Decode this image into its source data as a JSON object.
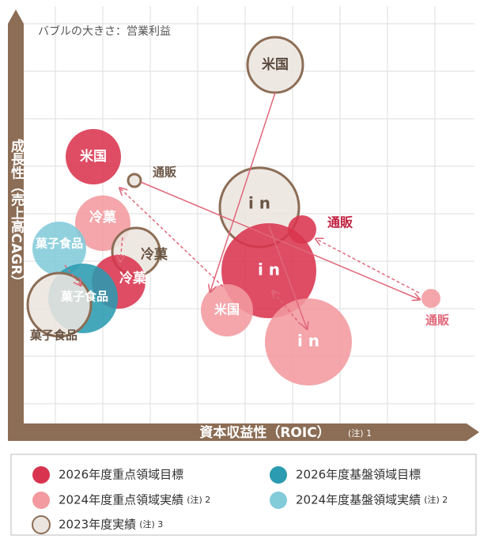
{
  "title": "バブルの大きさ：営業利益",
  "y_axis_label": "成長性（売上高CAGR）",
  "x_axis_label": "資本収益性（ROIC）",
  "x_axis_note": "(注) 1",
  "bubbles": [
    {
      "label": "米国"
    },
    {
      "label": "米国"
    },
    {
      "label": "通販"
    },
    {
      "label": "冷菓"
    },
    {
      "label": "冷菓"
    },
    {
      "label": "冷菓"
    },
    {
      "label": "菓子食品"
    },
    {
      "label": "菓子食品"
    },
    {
      "label": "菓子食品"
    },
    {
      "label": "i n"
    },
    {
      "label": "通販"
    },
    {
      "label": "i n"
    },
    {
      "label": "米国"
    },
    {
      "label": "i n"
    },
    {
      "label": "通販"
    }
  ],
  "legend": [
    {
      "label": "2026年度重点領域目標"
    },
    {
      "label": "2026年度基盤領域目標"
    },
    {
      "label": "2024年度重点領域実績",
      "note": "(注) 2"
    },
    {
      "label": "2024年度基盤領域実績",
      "note": "(注) 2"
    },
    {
      "label": "2023年度実績",
      "note": "(注) 3"
    }
  ]
}
